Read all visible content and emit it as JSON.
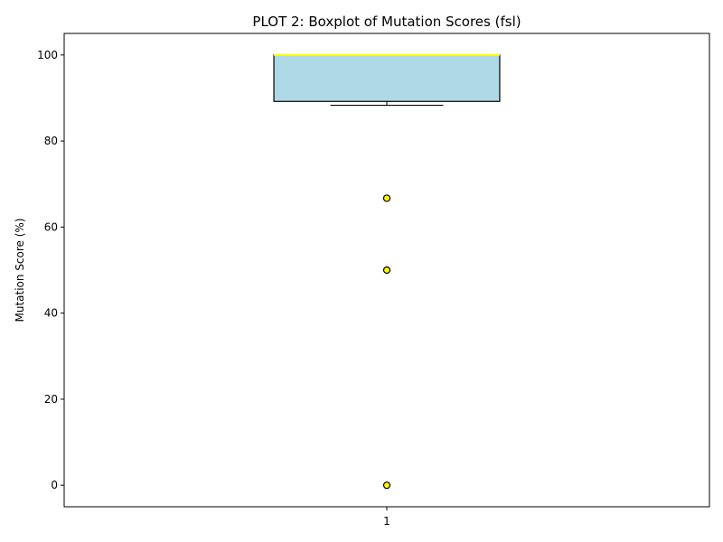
{
  "chart_data": {
    "type": "box",
    "title": "PLOT 2: Boxplot of Mutation Scores (fsl)",
    "xlabel": "",
    "ylabel": "Mutation Score (%)",
    "ylim": [
      -5,
      105
    ],
    "yticks": [
      0,
      20,
      40,
      60,
      80,
      100
    ],
    "categories": [
      "1"
    ],
    "boxes": [
      {
        "category": "1",
        "whisker_low": 88.3,
        "q1": 89.2,
        "median": 100,
        "q3": 100,
        "whisker_high": 100,
        "outliers": [
          66.7,
          50,
          0
        ]
      }
    ],
    "grid": false,
    "colors": {
      "box_fill": "#add8e6",
      "box_edge": "#000000",
      "median": "#ffff00",
      "outlier_fill": "#ffff00",
      "outlier_edge": "#000000"
    }
  }
}
